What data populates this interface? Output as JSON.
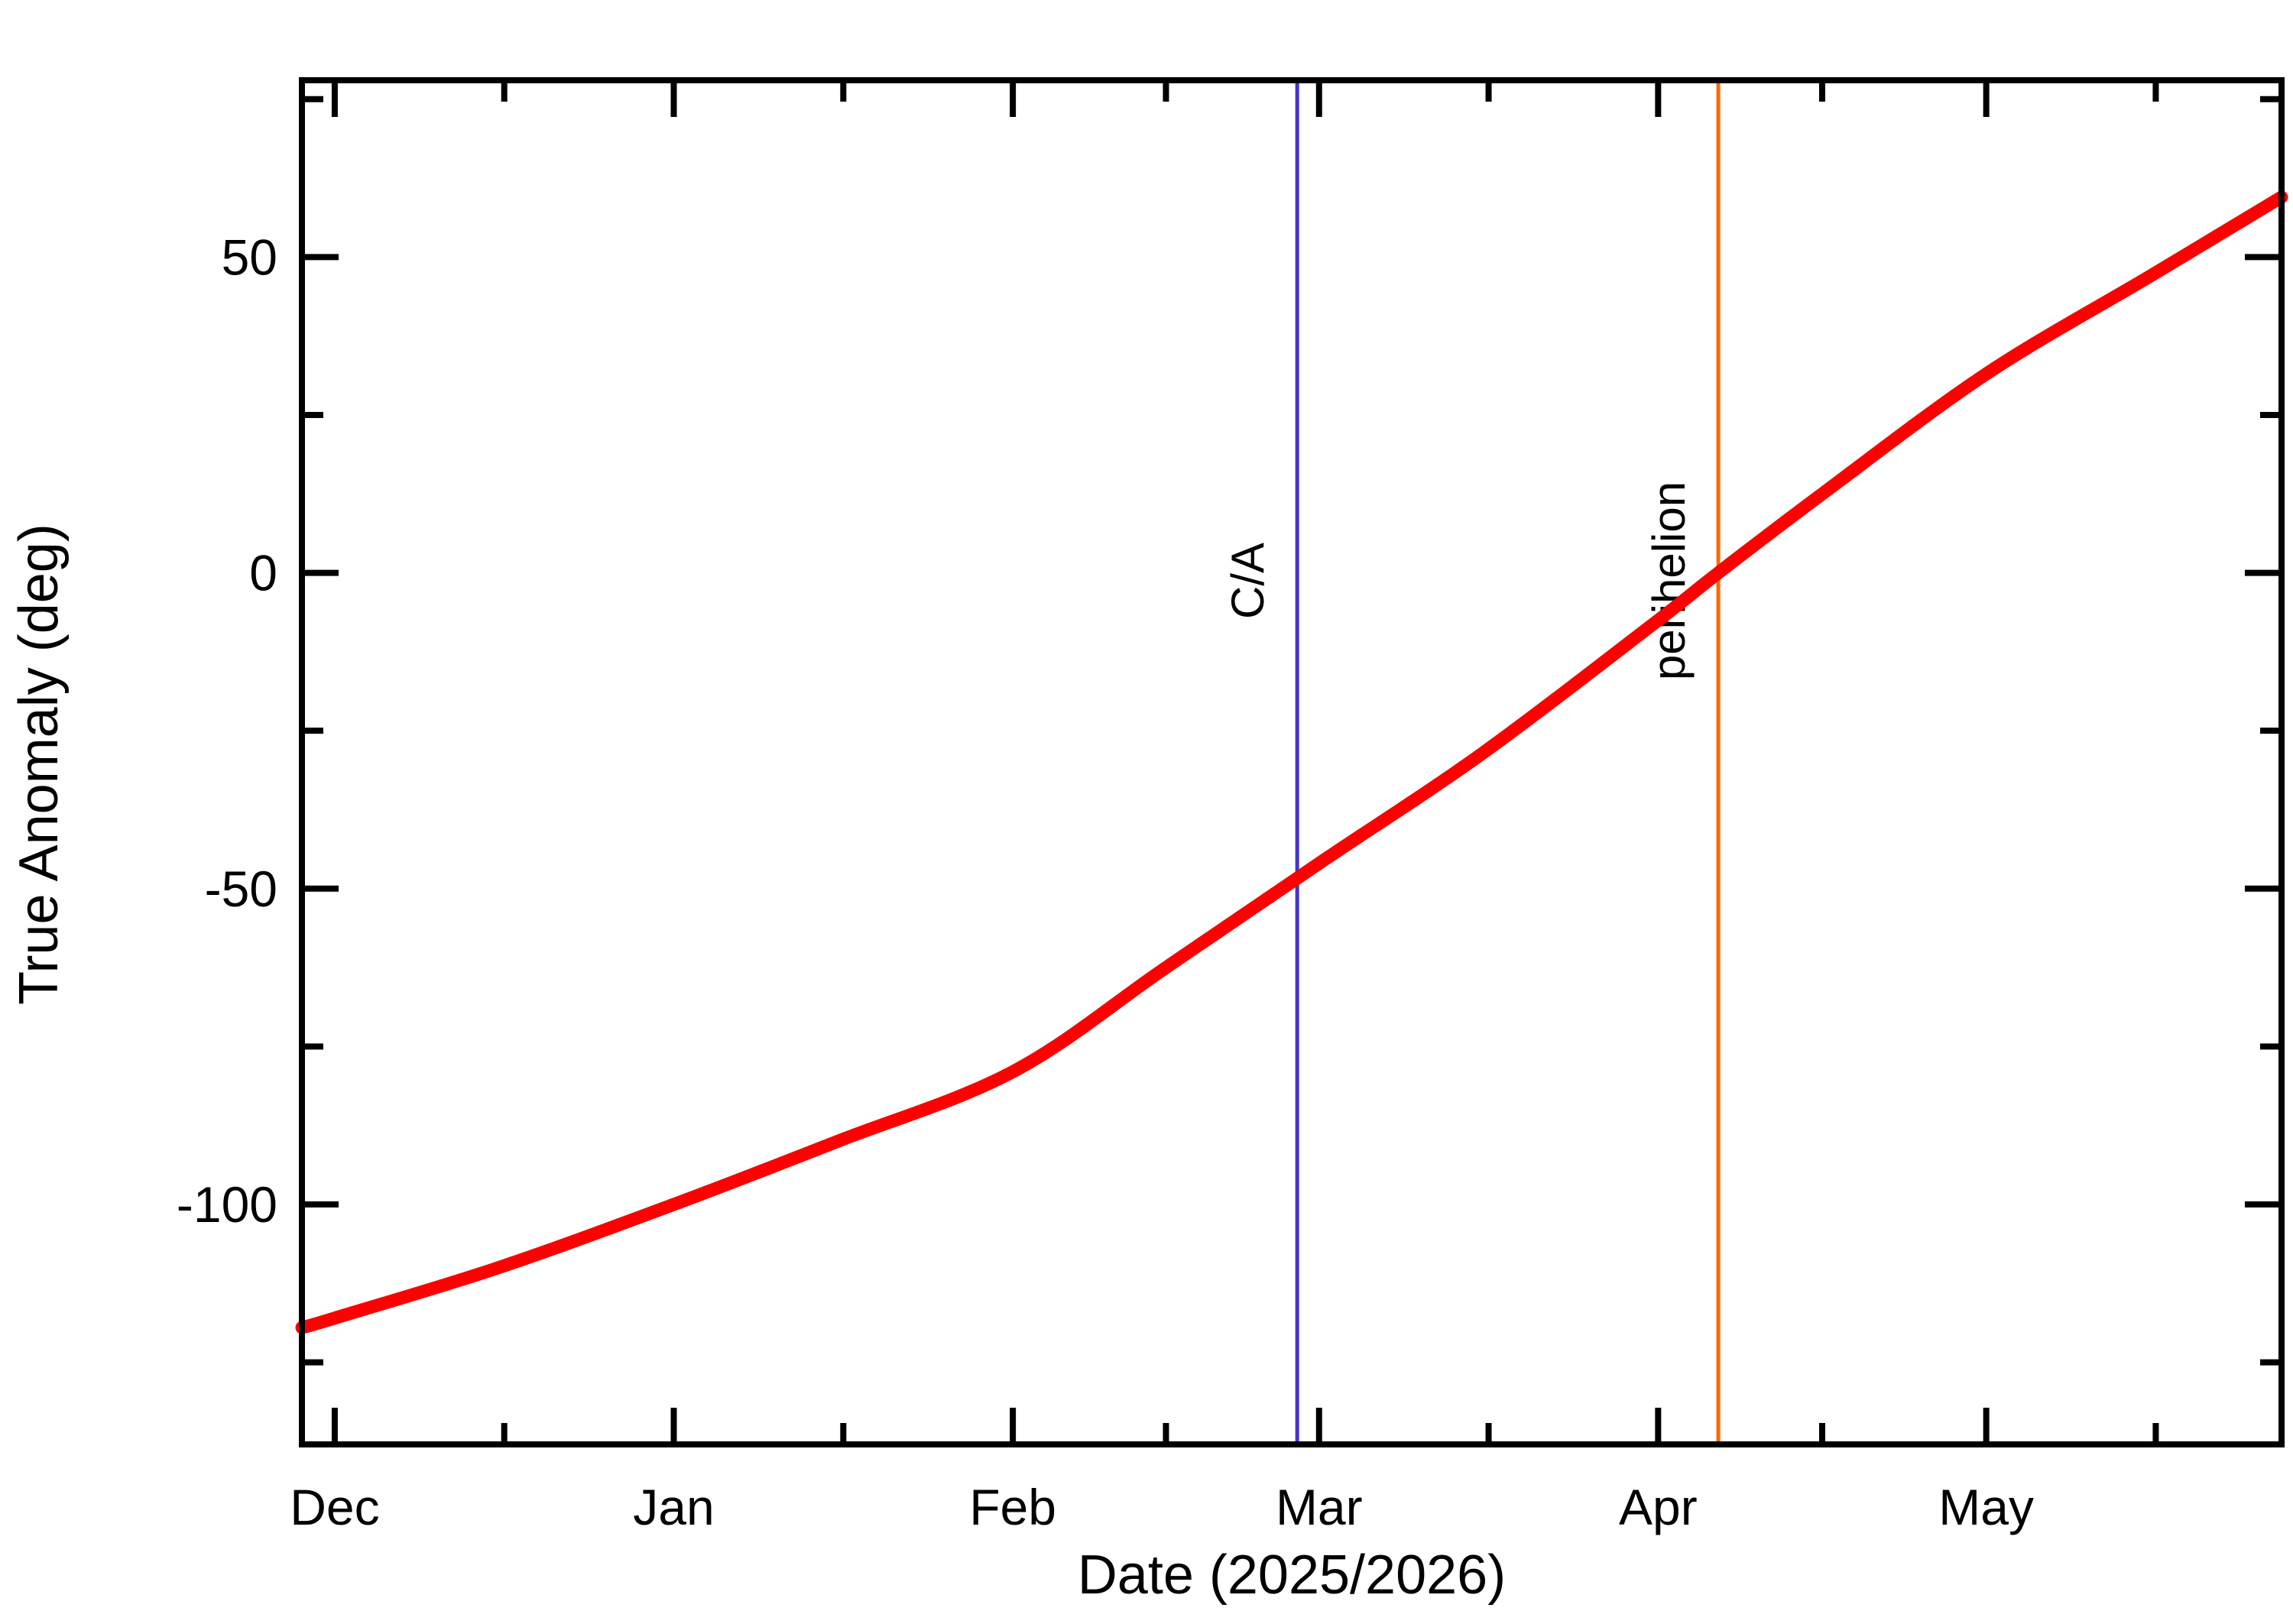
{
  "figure": {
    "background": "#ffffff",
    "frame_color": "#000000"
  },
  "chart_data": {
    "type": "line",
    "title": "",
    "xlabel": "Date (2025/2026)",
    "ylabel": "True Anomaly (deg)",
    "x_unit": "days since Dec 1",
    "xlim": [
      -3,
      178
    ],
    "ylim": [
      -138,
      78
    ],
    "grid": false,
    "legend": "none",
    "x_ticks": [
      {
        "label": "Dec",
        "day": 0
      },
      {
        "label": "Jan",
        "day": 31
      },
      {
        "label": "Feb",
        "day": 62
      },
      {
        "label": "Mar",
        "day": 90
      },
      {
        "label": "Apr",
        "day": 121
      },
      {
        "label": "May",
        "day": 151
      }
    ],
    "x_minor_ticks": [
      15.5,
      46.5,
      76,
      105.5,
      136,
      166.5
    ],
    "y_ticks": [
      {
        "label": "50",
        "value": 50
      },
      {
        "label": "0",
        "value": 0
      },
      {
        "label": "-50",
        "value": -50
      },
      {
        "label": "-100",
        "value": -100
      }
    ],
    "y_minor_ticks": [
      75,
      25,
      -25,
      -75,
      -125
    ],
    "series": [
      {
        "name": "true anomaly",
        "color": "#ff0000",
        "stroke_width": 17,
        "points": [
          [
            -3,
            -119.5
          ],
          [
            0,
            -118
          ],
          [
            15,
            -110
          ],
          [
            31,
            -100
          ],
          [
            46,
            -90
          ],
          [
            62,
            -79
          ],
          [
            76,
            -62.5
          ],
          [
            90,
            -46
          ],
          [
            105,
            -28.5
          ],
          [
            121,
            -7.5
          ],
          [
            126.5,
            0
          ],
          [
            136,
            12.5
          ],
          [
            151,
            31.5
          ],
          [
            166,
            47
          ],
          [
            178,
            59.5
          ]
        ]
      }
    ],
    "annotations": [
      {
        "label": "C/A",
        "day": 88,
        "color": "#4433cc",
        "value_at_line": -46
      },
      {
        "label": "perihelion",
        "day": 126.5,
        "color": "#ff6600",
        "value_at_line": 0
      }
    ]
  }
}
